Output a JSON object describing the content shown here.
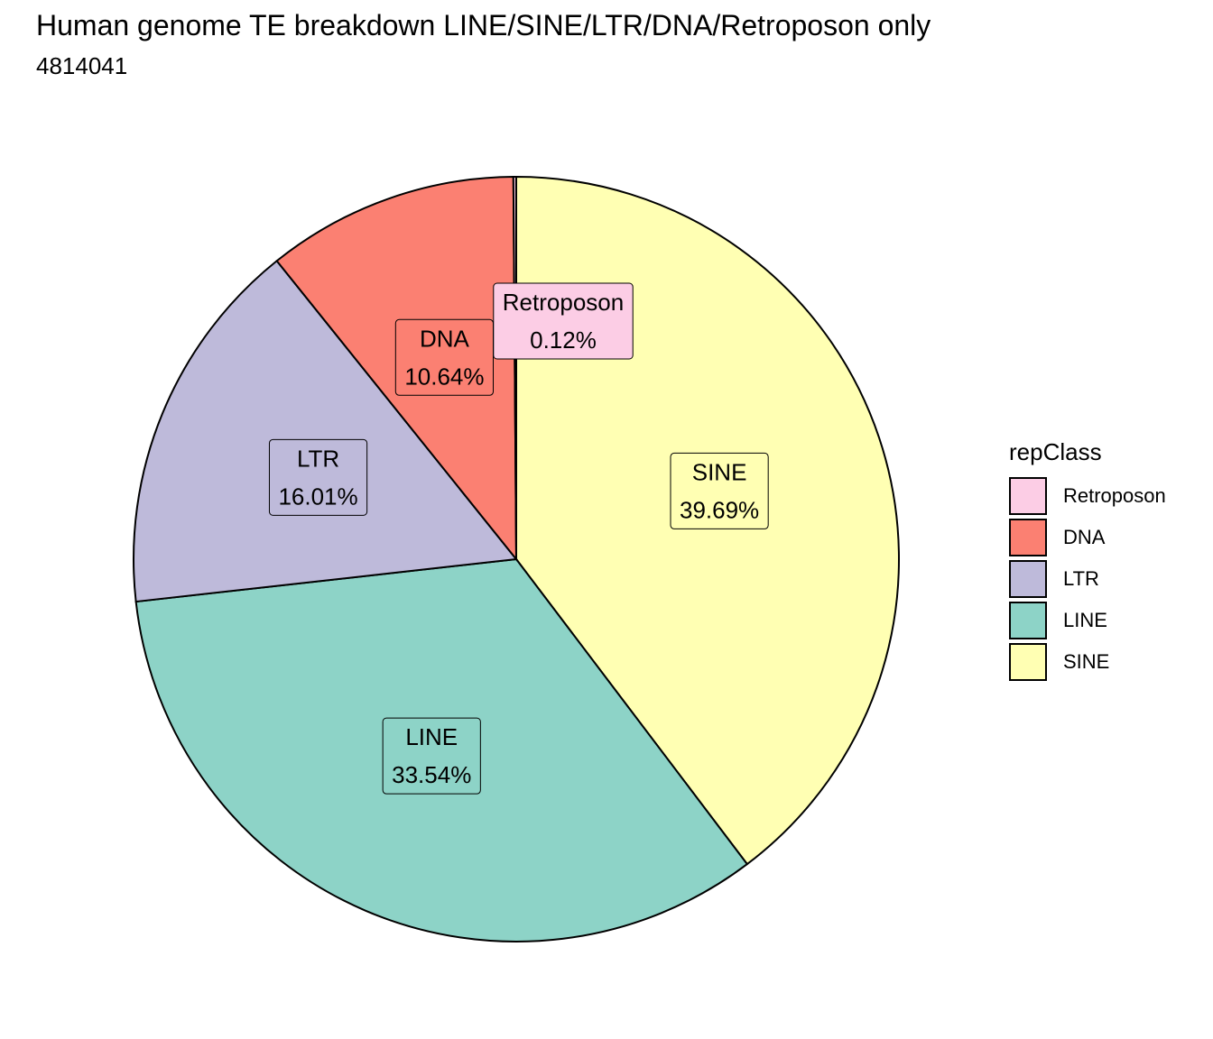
{
  "title": "Human genome TE breakdown LINE/SINE/LTR/DNA/Retroposon only",
  "subtitle": "4814041",
  "chart_data": {
    "type": "pie",
    "legend_title": "repClass",
    "legend_position": "right",
    "slices": [
      {
        "name": "SINE",
        "value": 39.69,
        "label": "39.69%",
        "color": "#FFFFB3"
      },
      {
        "name": "LINE",
        "value": 33.54,
        "label": "33.54%",
        "color": "#8DD3C7"
      },
      {
        "name": "LTR",
        "value": 16.01,
        "label": "16.01%",
        "color": "#BEBADA"
      },
      {
        "name": "DNA",
        "value": 10.64,
        "label": "10.64%",
        "color": "#FB8072"
      },
      {
        "name": "Retroposon",
        "value": 0.12,
        "label": "0.12%",
        "color": "#FCCDE5"
      }
    ],
    "legend_order": [
      "Retroposon",
      "DNA",
      "LTR",
      "LINE",
      "SINE"
    ]
  }
}
